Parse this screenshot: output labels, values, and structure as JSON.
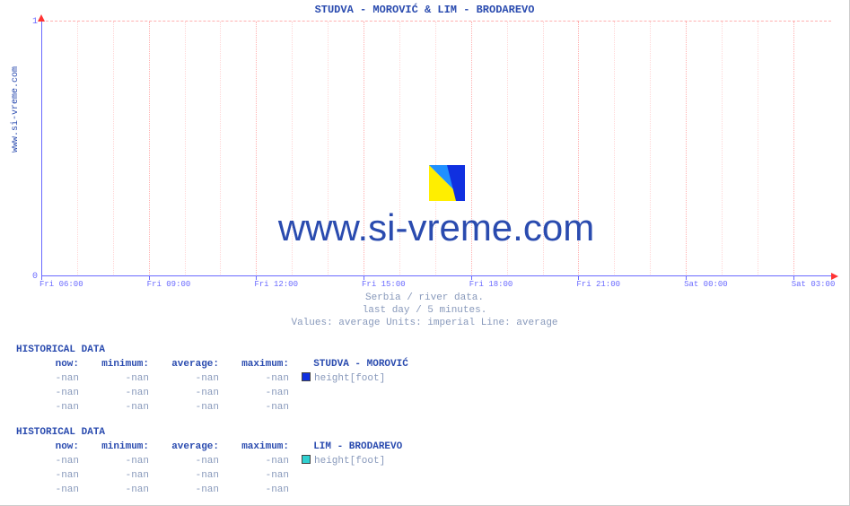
{
  "title": "STUDVA -  MOROVIĆ &  LIM -  BRODAREVO",
  "side_label": "www.si-vreme.com",
  "watermark": "www.si-vreme.com",
  "chart": {
    "type": "line",
    "ylim": [
      0,
      1
    ],
    "yticks": [
      0,
      1
    ],
    "xlabels": [
      "Fri 06:00",
      "Fri 09:00",
      "Fri 12:00",
      "Fri 15:00",
      "Fri 18:00",
      "Fri 21:00",
      "Sat 00:00",
      "Sat 03:00"
    ],
    "x_major_positions_pct": [
      0,
      13.6,
      27.2,
      40.8,
      54.4,
      68.0,
      81.6,
      95.2
    ],
    "x_minor_per_major": 2,
    "axis_color": "#6a6aff",
    "grid_color": "#ffb0b0",
    "grid_color_minor": "#ffd6d6",
    "arrow_color": "#ff3333",
    "background": "#ffffff",
    "tick_fontsize": 10,
    "label_fontsize": 9
  },
  "subcaption": {
    "line1": "Serbia / river data.",
    "line2": "last day / 5 minutes.",
    "line3": "Values: average  Units: imperial  Line: average"
  },
  "historical": [
    {
      "title": "HISTORICAL DATA",
      "series_label": "STUDVA -  MOROVIĆ",
      "marker_color": "#1030e0",
      "unit": "height[foot]",
      "columns": [
        "now:",
        "minimum:",
        "average:",
        "maximum:"
      ],
      "rows": [
        [
          "-nan",
          "-nan",
          "-nan",
          "-nan"
        ],
        [
          "-nan",
          "-nan",
          "-nan",
          "-nan"
        ],
        [
          "-nan",
          "-nan",
          "-nan",
          "-nan"
        ]
      ]
    },
    {
      "title": "HISTORICAL DATA",
      "series_label": "LIM -  BRODAREVO",
      "marker_color": "#30d0d0",
      "unit": "height[foot]",
      "columns": [
        "now:",
        "minimum:",
        "average:",
        "maximum:"
      ],
      "rows": [
        [
          "-nan",
          "-nan",
          "-nan",
          "-nan"
        ],
        [
          "-nan",
          "-nan",
          "-nan",
          "-nan"
        ],
        [
          "-nan",
          "-nan",
          "-nan",
          "-nan"
        ]
      ]
    }
  ],
  "logo": {
    "colors": [
      "#ffee00",
      "#1030e0",
      "#2090ff"
    ]
  },
  "palette": {
    "title_color": "#2a4baf",
    "muted": "#8899bb"
  }
}
